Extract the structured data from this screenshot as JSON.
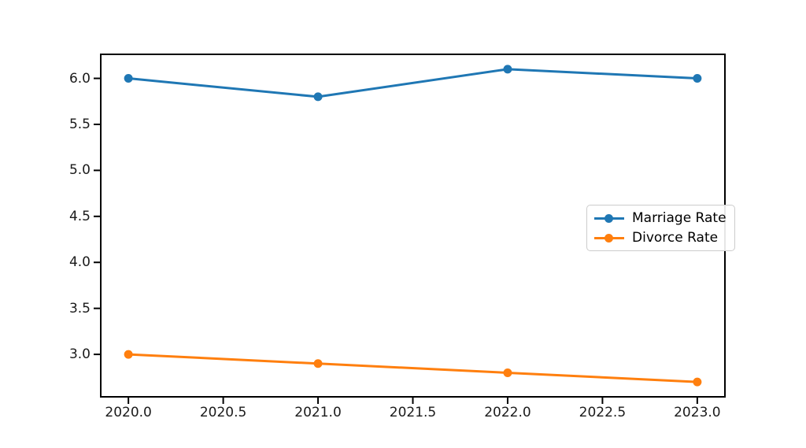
{
  "chart_data": {
    "type": "line",
    "x": [
      2020.0,
      2021.0,
      2022.0,
      2023.0
    ],
    "series": [
      {
        "name": "Marriage Rate",
        "color": "#1f77b4",
        "values": [
          6.0,
          5.8,
          6.1,
          6.0
        ]
      },
      {
        "name": "Divorce Rate",
        "color": "#ff7f0e",
        "values": [
          3.0,
          2.9,
          2.8,
          2.7
        ]
      }
    ],
    "title": "",
    "xlabel": "",
    "ylabel": "",
    "xlim": [
      2019.85,
      2023.15
    ],
    "ylim": [
      2.53,
      6.27
    ],
    "xticks": {
      "values": [
        2020.0,
        2020.5,
        2021.0,
        2021.5,
        2022.0,
        2022.5,
        2023.0
      ],
      "labels": [
        "2020.0",
        "2020.5",
        "2021.0",
        "2021.5",
        "2022.0",
        "2022.5",
        "2023.0"
      ]
    },
    "yticks": {
      "values": [
        3.0,
        3.5,
        4.0,
        4.5,
        5.0,
        5.5,
        6.0
      ],
      "labels": [
        "3.0",
        "3.5",
        "4.0",
        "4.5",
        "5.0",
        "5.5",
        "6.0"
      ]
    },
    "grid": false,
    "marker": "circle",
    "line_width": 3,
    "marker_radius": 5.5,
    "axis_color": "#000000",
    "tick_label_color": "#1a1a1a",
    "legend": {
      "position": "center right",
      "border_color": "#cccccc",
      "entries": [
        "Marriage Rate",
        "Divorce Rate"
      ]
    }
  }
}
